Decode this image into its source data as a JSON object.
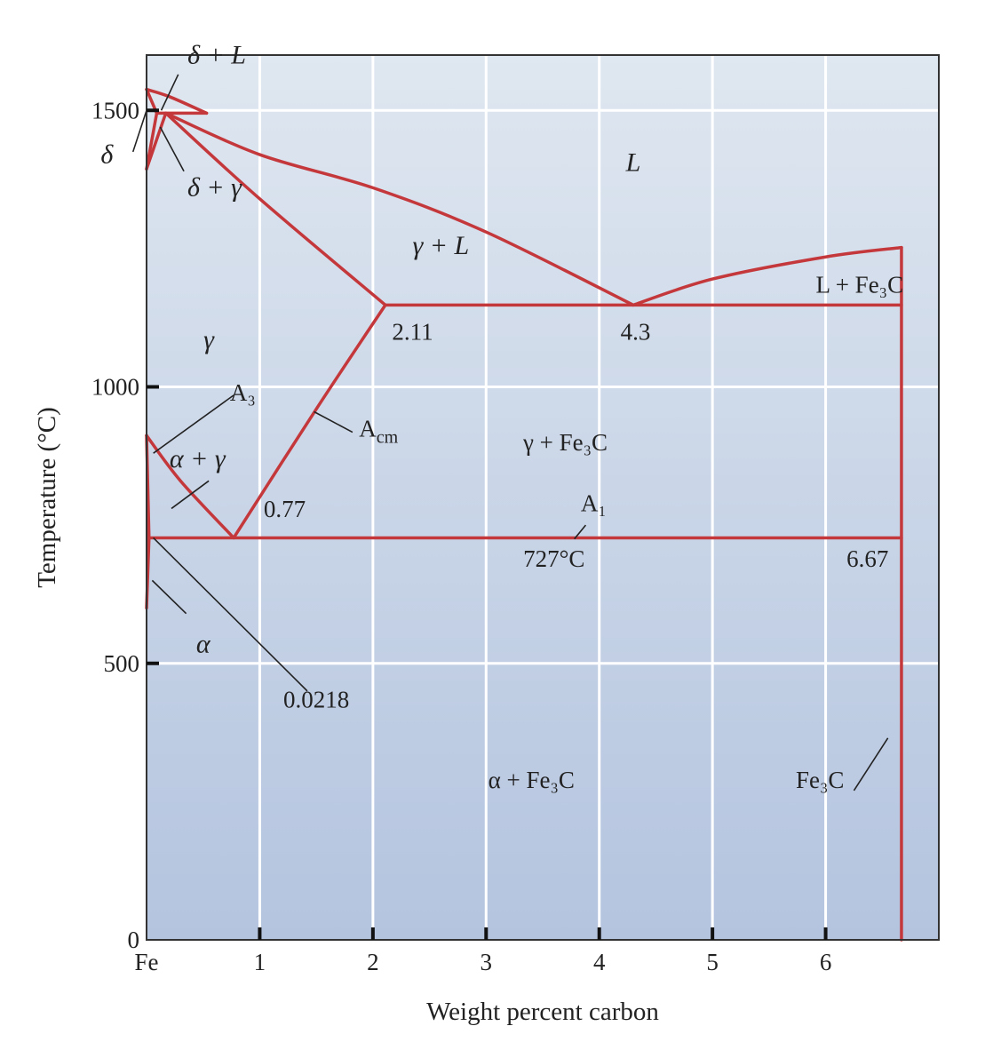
{
  "chart_data": {
    "type": "line",
    "title": "",
    "xlabel": "Weight percent carbon",
    "ylabel": "Temperature (°C)",
    "xlim": [
      0,
      7
    ],
    "ylim": [
      0,
      1600
    ],
    "grid": true,
    "x_ticks": [
      {
        "x": 0,
        "label": "Fe"
      },
      {
        "x": 1,
        "label": "1"
      },
      {
        "x": 2,
        "label": "2"
      },
      {
        "x": 3,
        "label": "3"
      },
      {
        "x": 4,
        "label": "4"
      },
      {
        "x": 5,
        "label": "5"
      },
      {
        "x": 6,
        "label": "6"
      }
    ],
    "y_ticks": [
      {
        "y": 0,
        "label": "0"
      },
      {
        "y": 500,
        "label": "500"
      },
      {
        "y": 1000,
        "label": "1000"
      },
      {
        "y": 1500,
        "label": "1500"
      }
    ],
    "line_color": "#c4383c",
    "series": [
      {
        "id": "liquidus-fe",
        "points": [
          [
            0,
            1538
          ],
          [
            0.2,
            1525
          ],
          [
            0.53,
            1495
          ]
        ]
      },
      {
        "id": "delta-solidus",
        "points": [
          [
            0.09,
            1495
          ],
          [
            0.0,
            1538
          ]
        ]
      },
      {
        "id": "delta-solvus-low",
        "points": [
          [
            0,
            1394
          ],
          [
            0.09,
            1495
          ]
        ]
      },
      {
        "id": "delta-gamma-lower",
        "points": [
          [
            0,
            1394
          ],
          [
            0.17,
            1495
          ]
        ]
      },
      {
        "id": "liquidus-main",
        "points": [
          [
            0.17,
            1495
          ],
          [
            1.0,
            1420
          ],
          [
            2.0,
            1360
          ],
          [
            3.0,
            1280
          ],
          [
            4.3,
            1148
          ]
        ]
      },
      {
        "id": "peritectic-line",
        "points": [
          [
            0.09,
            1495
          ],
          [
            0.53,
            1495
          ]
        ]
      },
      {
        "id": "gamma-solidus",
        "points": [
          [
            0.17,
            1495
          ],
          [
            1.0,
            1340
          ],
          [
            2.11,
            1148
          ]
        ]
      },
      {
        "id": "eutectic-line",
        "points": [
          [
            2.11,
            1148
          ],
          [
            6.67,
            1148
          ]
        ]
      },
      {
        "id": "liquidus-fe3c",
        "points": [
          [
            4.3,
            1148
          ],
          [
            5.0,
            1195
          ],
          [
            6.0,
            1235
          ],
          [
            6.67,
            1252
          ]
        ]
      },
      {
        "id": "fe3c-line",
        "points": [
          [
            6.67,
            1252
          ],
          [
            6.67,
            0
          ]
        ]
      },
      {
        "id": "acm",
        "points": [
          [
            0.77,
            727
          ],
          [
            1.5,
            960
          ],
          [
            2.11,
            1148
          ]
        ]
      },
      {
        "id": "a3",
        "points": [
          [
            0,
            912
          ],
          [
            0.3,
            830
          ],
          [
            0.77,
            727
          ]
        ]
      },
      {
        "id": "alpha-solvus-high",
        "points": [
          [
            0,
            912
          ],
          [
            0.0218,
            727
          ]
        ]
      },
      {
        "id": "eutectoid-line",
        "points": [
          [
            0.0218,
            727
          ],
          [
            6.67,
            727
          ]
        ]
      },
      {
        "id": "alpha-solvus-low",
        "points": [
          [
            0.0218,
            727
          ],
          [
            0.0,
            600
          ]
        ]
      }
    ],
    "labels": [
      {
        "id": "region-l",
        "text": "L",
        "x": 4.3,
        "y": 1390,
        "italic": true
      },
      {
        "id": "region-gamma-l",
        "text": "γ + L",
        "x": 2.6,
        "y": 1240,
        "italic": true
      },
      {
        "id": "region-gamma",
        "text": "γ",
        "x": 0.55,
        "y": 1070,
        "italic": true
      },
      {
        "id": "region-alpha-gamma",
        "text": "α + γ",
        "x": 0.45,
        "y": 855,
        "italic": true
      },
      {
        "id": "region-gamma-fe3c",
        "text": "γ + Fe₃C",
        "x": 3.7,
        "y": 885,
        "italic": false
      },
      {
        "id": "region-l-fe3c",
        "text": "L + Fe₃C",
        "x": 6.3,
        "y": 1170,
        "italic": false
      },
      {
        "id": "region-alpha-fe3c",
        "text": "α + Fe₃C",
        "x": 3.4,
        "y": 275,
        "italic": false
      },
      {
        "id": "label-fe3c",
        "text": "Fe₃C",
        "x": 5.95,
        "y": 275,
        "italic": false
      },
      {
        "id": "label-delta-l",
        "text": "δ + L",
        "x": 0.62,
        "y": 1585,
        "italic": true
      },
      {
        "id": "label-delta",
        "text": "δ",
        "x": -0.35,
        "y": 1405,
        "italic": true
      },
      {
        "id": "label-delta-gamma",
        "text": "δ + γ",
        "x": 0.6,
        "y": 1345,
        "italic": true
      },
      {
        "id": "label-alpha",
        "text": "α",
        "x": 0.5,
        "y": 520,
        "italic": true
      },
      {
        "id": "label-a3",
        "text": "A₃",
        "x": 0.85,
        "y": 975,
        "italic": false
      },
      {
        "id": "label-acm",
        "text": "Acm",
        "x": 2.05,
        "y": 910,
        "italic": false
      },
      {
        "id": "label-a1",
        "text": "A₁",
        "x": 3.95,
        "y": 775,
        "italic": false
      },
      {
        "id": "value-211",
        "text": "2.11",
        "x": 2.35,
        "y": 1085,
        "italic": false
      },
      {
        "id": "value-43",
        "text": "4.3",
        "x": 4.32,
        "y": 1085,
        "italic": false
      },
      {
        "id": "value-077",
        "text": "0.77",
        "x": 1.22,
        "y": 765,
        "italic": false
      },
      {
        "id": "value-727",
        "text": "727°C",
        "x": 3.6,
        "y": 675,
        "italic": false
      },
      {
        "id": "value-667",
        "text": "6.67",
        "x": 6.37,
        "y": 675,
        "italic": false
      },
      {
        "id": "value-00218",
        "text": "0.0218",
        "x": 1.5,
        "y": 420,
        "italic": false
      }
    ]
  }
}
